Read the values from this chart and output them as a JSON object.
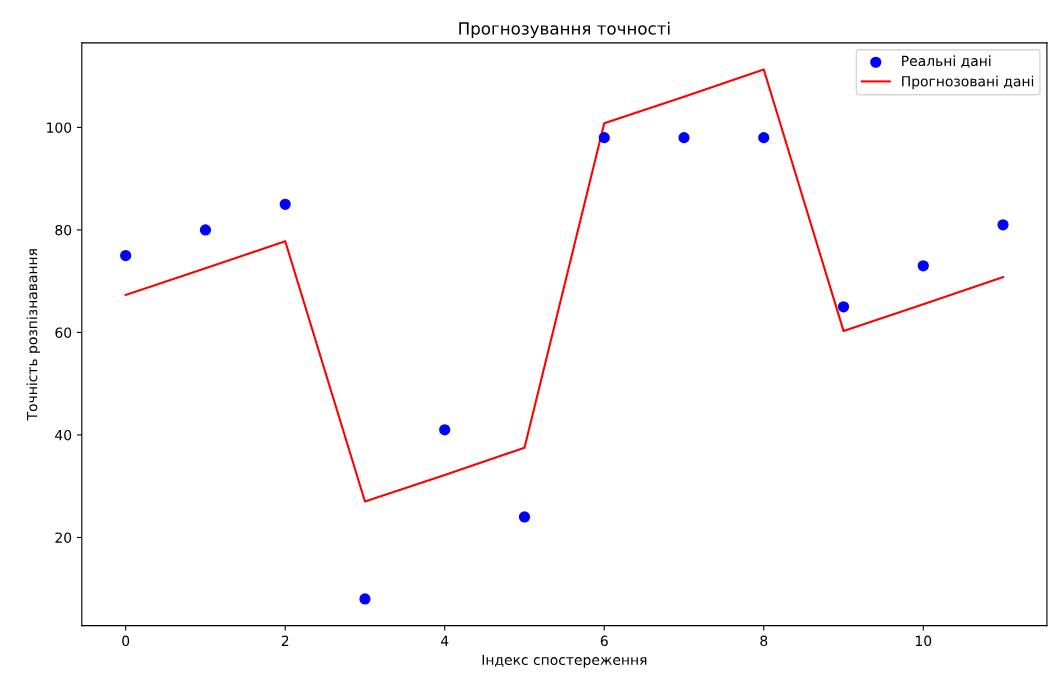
{
  "chart_data": {
    "type": "scatter",
    "title": "Прогнозування точності",
    "xlabel": "Індекс спостереження",
    "ylabel": "Точність розпізнавання",
    "x": [
      0,
      1,
      2,
      3,
      4,
      5,
      6,
      7,
      8,
      9,
      10,
      11
    ],
    "series": [
      {
        "name": "Реальні дані",
        "color": "#0000ff",
        "values": [
          75,
          80,
          85,
          8,
          41,
          24,
          98,
          98,
          98,
          65,
          73,
          81
        ]
      },
      {
        "name": "Прогнозовані дані",
        "type": "line",
        "color": "#ff0000",
        "values": [
          67.3,
          72.5,
          77.8,
          27,
          32.2,
          37.5,
          100.8,
          106,
          111.3,
          60.3,
          65.5,
          70.8
        ]
      }
    ],
    "xlim": [
      -0.55,
      11.55
    ],
    "xticks": [
      0,
      2,
      4,
      6,
      8,
      10
    ],
    "ylim": [
      2.8,
      116.5
    ],
    "yticks": [
      20,
      40,
      60,
      80,
      100
    ],
    "legend": "top right",
    "grid": false
  }
}
